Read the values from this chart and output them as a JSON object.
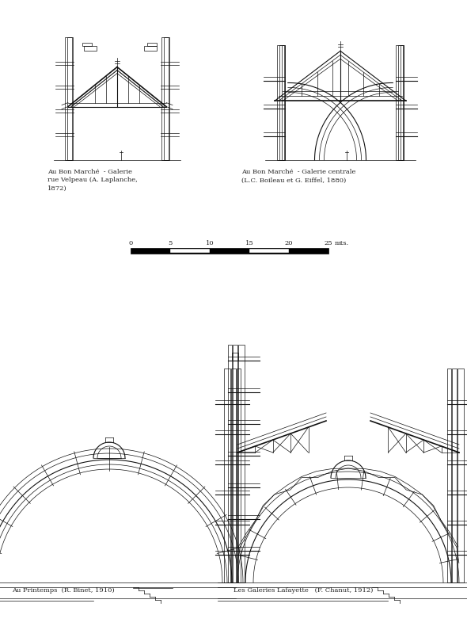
{
  "background_color": "#ffffff",
  "label_top_left": "Au Bon Marché  - Galerie\nrue Velpeau (A. Laplanche,\n1872)",
  "label_top_right": "Au Bon Marché  - Galerie centrale\n(L.C. Boileau et G. Eiffel, 1880)",
  "label_bottom_left": "Au Printemps  (R. Binet, 1910)",
  "label_bottom_right": "Les Galeries Lafayette   (F. Chanut, 1912)",
  "scale_ticks": [
    0,
    5,
    10,
    15,
    20,
    25
  ],
  "scale_unit": "mts.",
  "line_color": "#111111",
  "text_color": "#222222"
}
